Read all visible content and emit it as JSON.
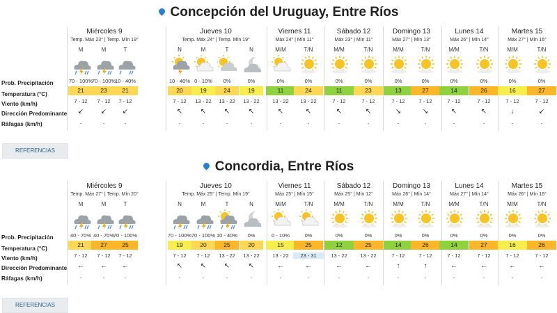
{
  "sections": [
    {
      "title": "Concepción del Uruguay, Entre Ríos",
      "row_labels": [
        "Prob. Precipitación",
        "Temperatura (°C)",
        "Viento (km/h)",
        "Dirección Predominante",
        "Ráfagas (km/h)"
      ],
      "references_label": "REFERENCIAS",
      "days": [
        {
          "name": "Miércoles 9",
          "sub": [
            "Temp. Máx 23°",
            "Temp. Mín 19°"
          ],
          "periods": [
            {
              "label": "M",
              "icon": "storm-rain-icon",
              "prob": "70 - 100%",
              "temp": "21",
              "color": "#fcd855",
              "wind": "7 - 12",
              "dir": "↙",
              "gust": "-"
            },
            {
              "label": "M",
              "icon": "storm-rain-icon",
              "prob": "70 - 100%",
              "temp": "23",
              "color": "#fcd855",
              "wind": "7 - 12",
              "dir": "↙",
              "gust": "-"
            },
            {
              "label": "T",
              "icon": "rain-cloud-icon",
              "prob": "10 - 40%",
              "temp": "21",
              "color": "#fcd855",
              "wind": "7 - 12",
              "dir": "↙",
              "gust": "-"
            }
          ]
        },
        {
          "name": "Jueves 10",
          "sub": [
            "Temp. Máx 24°",
            "Temp. Mín 19°"
          ],
          "periods": [
            {
              "label": "N",
              "icon": "storm-moon-icon",
              "prob": "10 - 40%",
              "temp": "20",
              "color": "#fcd855",
              "wind": "7 - 12",
              "dir": "↖",
              "gust": "-"
            },
            {
              "label": "M",
              "icon": "partly-sunny-icon",
              "prob": "0 - 10%",
              "temp": "19",
              "color": "#f7ee4d",
              "wind": "13 - 22",
              "dir": "↖",
              "gust": "-"
            },
            {
              "label": "T",
              "icon": "cloudy-sun-icon",
              "prob": "0%",
              "temp": "24",
              "color": "#fcd855",
              "wind": "13 - 22",
              "dir": "↖",
              "gust": "-"
            },
            {
              "label": "N",
              "icon": "cloudy-moon-icon",
              "prob": "0%",
              "temp": "19",
              "color": "#f7ee4d",
              "wind": "13 - 22",
              "dir": "↖",
              "gust": "-"
            }
          ]
        },
        {
          "name": "Viernes 11",
          "sub": [
            "Máx 24°",
            "Mín 11°"
          ],
          "periods": [
            {
              "label": "M/M",
              "icon": "partly-sunny-icon",
              "prob": "0%",
              "temp": "11",
              "color": "#8fd13f",
              "wind": "13 - 22",
              "dir": "↖",
              "gust": "-"
            },
            {
              "label": "T/N",
              "icon": "sun-icon",
              "prob": "0%",
              "temp": "24",
              "color": "#fcd855",
              "wind": "13 - 22",
              "dir": "↖",
              "gust": "-"
            }
          ]
        },
        {
          "name": "Sábado 12",
          "sub": [
            "Máx 23°",
            "Mín 11°"
          ],
          "periods": [
            {
              "label": "M/M",
              "icon": "sun-icon",
              "prob": "0%",
              "temp": "11",
              "color": "#8fd13f",
              "wind": "7 - 12",
              "dir": "↖",
              "gust": "-"
            },
            {
              "label": "T/N",
              "icon": "sun-icon",
              "prob": "0%",
              "temp": "23",
              "color": "#fcd855",
              "wind": "7 - 12",
              "dir": "↖",
              "gust": "-"
            }
          ]
        },
        {
          "name": "Domingo 13",
          "sub": [
            "Máx 27°",
            "Mín 13°"
          ],
          "periods": [
            {
              "label": "M/M",
              "icon": "sun-icon",
              "prob": "0%",
              "temp": "13",
              "color": "#8fd13f",
              "wind": "7 - 12",
              "dir": "↘",
              "gust": "-"
            },
            {
              "label": "T/N",
              "icon": "sun-icon",
              "prob": "0%",
              "temp": "27",
              "color": "#fbb728",
              "wind": "7 - 12",
              "dir": "↘",
              "gust": "-"
            }
          ]
        },
        {
          "name": "Lunes 14",
          "sub": [
            "Máx 26°",
            "Mín 14°"
          ],
          "periods": [
            {
              "label": "M/M",
              "icon": "sun-icon",
              "prob": "0%",
              "temp": "14",
              "color": "#8fd13f",
              "wind": "7 - 12",
              "dir": "↖",
              "gust": "-"
            },
            {
              "label": "T/N",
              "icon": "sun-icon",
              "prob": "0%",
              "temp": "26",
              "color": "#fbb728",
              "wind": "7 - 12",
              "dir": "↖",
              "gust": "-"
            }
          ]
        },
        {
          "name": "Martes 15",
          "sub": [
            "Máx 27°",
            "Mín 16°"
          ],
          "periods": [
            {
              "label": "M/M",
              "icon": "sun-icon",
              "prob": "0%",
              "temp": "16",
              "color": "#f7ee4d",
              "wind": "7 - 12",
              "dir": "↓",
              "gust": "-"
            },
            {
              "label": "T/N",
              "icon": "sun-icon",
              "prob": "0%",
              "temp": "27",
              "color": "#fbb728",
              "wind": "7 - 12",
              "dir": "↙",
              "gust": "-"
            }
          ]
        }
      ]
    },
    {
      "title": "Concordia, Entre Ríos",
      "row_labels": [
        "Prob. Precipitación",
        "Temperatura (°C)",
        "Viento (km/h)",
        "Dirección Predominante",
        "Ráfagas (km/h)"
      ],
      "references_label": "REFERENCIAS",
      "days": [
        {
          "name": "Miércoles 9",
          "sub": [
            "Temp. Máx 27°",
            "Temp. Mín 20°"
          ],
          "periods": [
            {
              "label": "M",
              "icon": "storm-rain-icon",
              "prob": "40 - 70%",
              "temp": "21",
              "color": "#fcd855",
              "wind": "7 - 12",
              "dir": "←",
              "gust": "-"
            },
            {
              "label": "M",
              "icon": "storm-rain-icon",
              "prob": "40 - 70%",
              "temp": "27",
              "color": "#fbb728",
              "wind": "7 - 12",
              "dir": "←",
              "gust": "-"
            },
            {
              "label": "T",
              "icon": "storm-rain-icon",
              "prob": "70 - 100%",
              "temp": "25",
              "color": "#fbb728",
              "wind": "7 - 12",
              "dir": "←",
              "gust": "-"
            }
          ]
        },
        {
          "name": "Jueves 10",
          "sub": [
            "Temp. Máx 25°",
            "Temp. Mín 19°"
          ],
          "periods": [
            {
              "label": "N",
              "icon": "storm-rain-icon",
              "prob": "70 - 100%",
              "temp": "19",
              "color": "#f7ee4d",
              "wind": "7 - 12",
              "dir": "↖",
              "gust": "-"
            },
            {
              "label": "M",
              "icon": "storm-rain-icon",
              "prob": "70 - 100%",
              "temp": "20",
              "color": "#fcd855",
              "wind": "7 - 12",
              "dir": "↖",
              "gust": "-"
            },
            {
              "label": "T",
              "icon": "storm-sun-icon",
              "prob": "10 - 40%",
              "temp": "25",
              "color": "#fbb728",
              "wind": "13 - 22",
              "dir": "↖",
              "gust": "-"
            },
            {
              "label": "N",
              "icon": "cloudy-moon-icon",
              "prob": "0%",
              "temp": "20",
              "color": "#fcd855",
              "wind": "13 - 22",
              "dir": "↖",
              "gust": "-"
            }
          ]
        },
        {
          "name": "Viernes 11",
          "sub": [
            "Máx 25°",
            "Mín 15°"
          ],
          "periods": [
            {
              "label": "M/M",
              "icon": "partly-sunny-icon",
              "prob": "0 - 10%",
              "temp": "15",
              "color": "#f7ee4d",
              "wind": "13 - 22",
              "dir": "←",
              "gust": "-"
            },
            {
              "label": "T/N",
              "icon": "partly-sunny-icon",
              "prob": "0%",
              "temp": "25",
              "color": "#fbb728",
              "wind": "23 - 31",
              "dir": "←",
              "gust": "-"
            }
          ]
        },
        {
          "name": "Sábado 12",
          "sub": [
            "Máx 25°",
            "Mín 12°"
          ],
          "periods": [
            {
              "label": "M/M",
              "icon": "sun-icon",
              "prob": "0%",
              "temp": "12",
              "color": "#8fd13f",
              "wind": "13 - 22",
              "dir": "←",
              "gust": "-"
            },
            {
              "label": "T/N",
              "icon": "sun-icon",
              "prob": "0%",
              "temp": "25",
              "color": "#fbb728",
              "wind": "13 - 22",
              "dir": "←",
              "gust": "-"
            }
          ]
        },
        {
          "name": "Domingo 13",
          "sub": [
            "Máx 26°",
            "Mín 14°"
          ],
          "periods": [
            {
              "label": "M/M",
              "icon": "sun-icon",
              "prob": "0%",
              "temp": "14",
              "color": "#8fd13f",
              "wind": "7 - 12",
              "dir": "↑",
              "gust": "-"
            },
            {
              "label": "T/N",
              "icon": "sun-icon",
              "prob": "0%",
              "temp": "26",
              "color": "#fbb728",
              "wind": "7 - 12",
              "dir": "↑",
              "gust": "-"
            }
          ]
        },
        {
          "name": "Lunes 14",
          "sub": [
            "Máx 27°",
            "Mín 14°"
          ],
          "periods": [
            {
              "label": "M/M",
              "icon": "sun-icon",
              "prob": "0%",
              "temp": "14",
              "color": "#8fd13f",
              "wind": "7 - 12",
              "dir": "←",
              "gust": "-"
            },
            {
              "label": "T/N",
              "icon": "sun-icon",
              "prob": "0%",
              "temp": "27",
              "color": "#fbb728",
              "wind": "7 - 12",
              "dir": "←",
              "gust": "-"
            }
          ]
        },
        {
          "name": "Martes 15",
          "sub": [
            "Máx 26°",
            "Mín 16°"
          ],
          "periods": [
            {
              "label": "M/M",
              "icon": "sun-icon",
              "prob": "0%",
              "temp": "16",
              "color": "#f7ee4d",
              "wind": "7 - 12",
              "dir": "←",
              "gust": "-"
            },
            {
              "label": "T/N",
              "icon": "sun-icon",
              "prob": "0%",
              "temp": "26",
              "color": "#fbb728",
              "wind": "7 - 12",
              "dir": "←",
              "gust": "-"
            }
          ]
        }
      ]
    }
  ]
}
